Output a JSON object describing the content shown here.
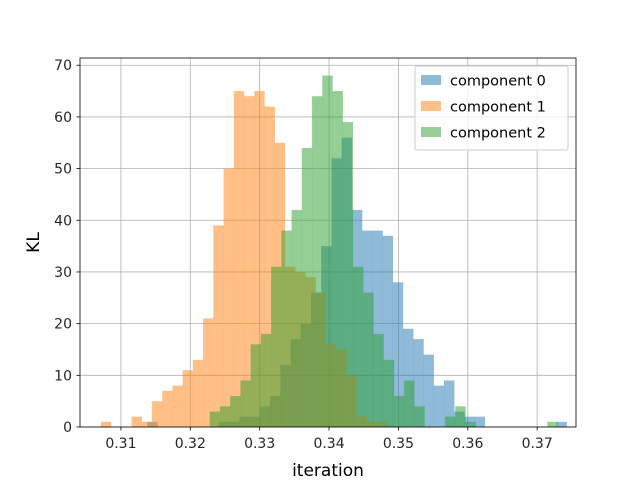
{
  "chart_data": {
    "type": "histogram",
    "title": "",
    "xlabel": "iteration",
    "ylabel": "KL",
    "xlim": [
      0.3041,
      0.3756
    ],
    "ylim": [
      0,
      71.4
    ],
    "xticks": [
      0.31,
      0.32,
      0.33,
      0.34,
      0.35,
      0.36,
      0.37
    ],
    "xtick_labels": [
      "0.31",
      "0.32",
      "0.33",
      "0.34",
      "0.35",
      "0.36",
      "0.37"
    ],
    "yticks": [
      0,
      10,
      20,
      30,
      40,
      50,
      60,
      70
    ],
    "ytick_labels": [
      "0",
      "10",
      "20",
      "30",
      "40",
      "50",
      "60",
      "70"
    ],
    "grid": true,
    "legend_position": "top-right",
    "series": [
      {
        "name": "component 0",
        "color": "#1f77b4",
        "opacity": 0.5,
        "bin_start": 0.3138,
        "bin_width": 0.001475,
        "counts": [
          1,
          0,
          0,
          0,
          0,
          0,
          0,
          1,
          1,
          2,
          2,
          4,
          6,
          12,
          17,
          20,
          26,
          35,
          52,
          56,
          42,
          38,
          38,
          37,
          28,
          19,
          17,
          14,
          8,
          9,
          3,
          2,
          2,
          0,
          0,
          0,
          0,
          0,
          0,
          0,
          1
        ]
      },
      {
        "name": "component 1",
        "color": "#ff7f0e",
        "opacity": 0.5,
        "bin_start": 0.3071,
        "bin_width": 0.001475,
        "counts": [
          1,
          0,
          0,
          2,
          1,
          5,
          7,
          8,
          11,
          13,
          21,
          39,
          50,
          65,
          64,
          65,
          62,
          55,
          31,
          30,
          29,
          26,
          16,
          15,
          10,
          2,
          1,
          1
        ]
      },
      {
        "name": "component 2",
        "color": "#2ca02c",
        "opacity": 0.5,
        "bin_start": 0.3228,
        "bin_width": 0.001475,
        "counts": [
          3,
          4,
          6,
          9,
          16,
          18,
          31,
          38,
          42,
          54,
          64,
          68,
          65,
          59,
          31,
          26,
          18,
          13,
          6,
          9,
          4,
          0,
          0,
          2,
          4,
          1,
          0,
          0,
          0,
          0,
          0,
          0,
          0,
          1
        ]
      }
    ]
  }
}
